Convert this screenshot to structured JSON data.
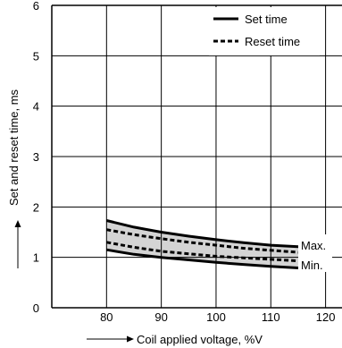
{
  "chart_data": {
    "type": "line",
    "title": "",
    "xlabel": "Coil applied voltage, %V",
    "ylabel": "Set and reset time, ms",
    "xlim": [
      70,
      123
    ],
    "ylim": [
      0,
      6
    ],
    "x_ticks": [
      80,
      90,
      100,
      110,
      120
    ],
    "y_ticks": [
      0,
      1,
      2,
      3,
      4,
      5,
      6
    ],
    "grid": true,
    "legend_position": "top-right",
    "legend": [
      {
        "label": "Set time",
        "style": "solid"
      },
      {
        "label": "Reset time",
        "style": "dashed"
      }
    ],
    "annotations": [
      "Max.",
      "Min."
    ],
    "series": [
      {
        "name": "Set time",
        "bound": "Max.",
        "style": "solid",
        "x": [
          80,
          85,
          90,
          95,
          100,
          105,
          110,
          115,
          118,
          120
        ],
        "y": [
          1.73,
          1.6,
          1.5,
          1.42,
          1.35,
          1.29,
          1.24,
          1.21,
          1.21,
          1.25
        ]
      },
      {
        "name": "Set time",
        "bound": "Min.",
        "style": "solid",
        "x": [
          80,
          85,
          90,
          95,
          100,
          105,
          110,
          115,
          120
        ],
        "y": [
          1.15,
          1.06,
          1.0,
          0.95,
          0.9,
          0.86,
          0.82,
          0.79,
          0.77
        ]
      },
      {
        "name": "Reset time",
        "bound": "Max.",
        "style": "dashed",
        "x": [
          80,
          85,
          90,
          95,
          100,
          105,
          110,
          115,
          120
        ],
        "y": [
          1.55,
          1.45,
          1.37,
          1.3,
          1.24,
          1.18,
          1.14,
          1.1,
          1.08
        ]
      },
      {
        "name": "Reset time",
        "bound": "Min.",
        "style": "dashed",
        "x": [
          80,
          85,
          90,
          95,
          100,
          105,
          110,
          115,
          120
        ],
        "y": [
          1.3,
          1.2,
          1.12,
          1.07,
          1.02,
          0.99,
          0.96,
          0.93,
          0.91
        ]
      }
    ],
    "colors": {
      "band": "#d4d4d4",
      "line": "#000000",
      "grid": "#000000"
    }
  }
}
